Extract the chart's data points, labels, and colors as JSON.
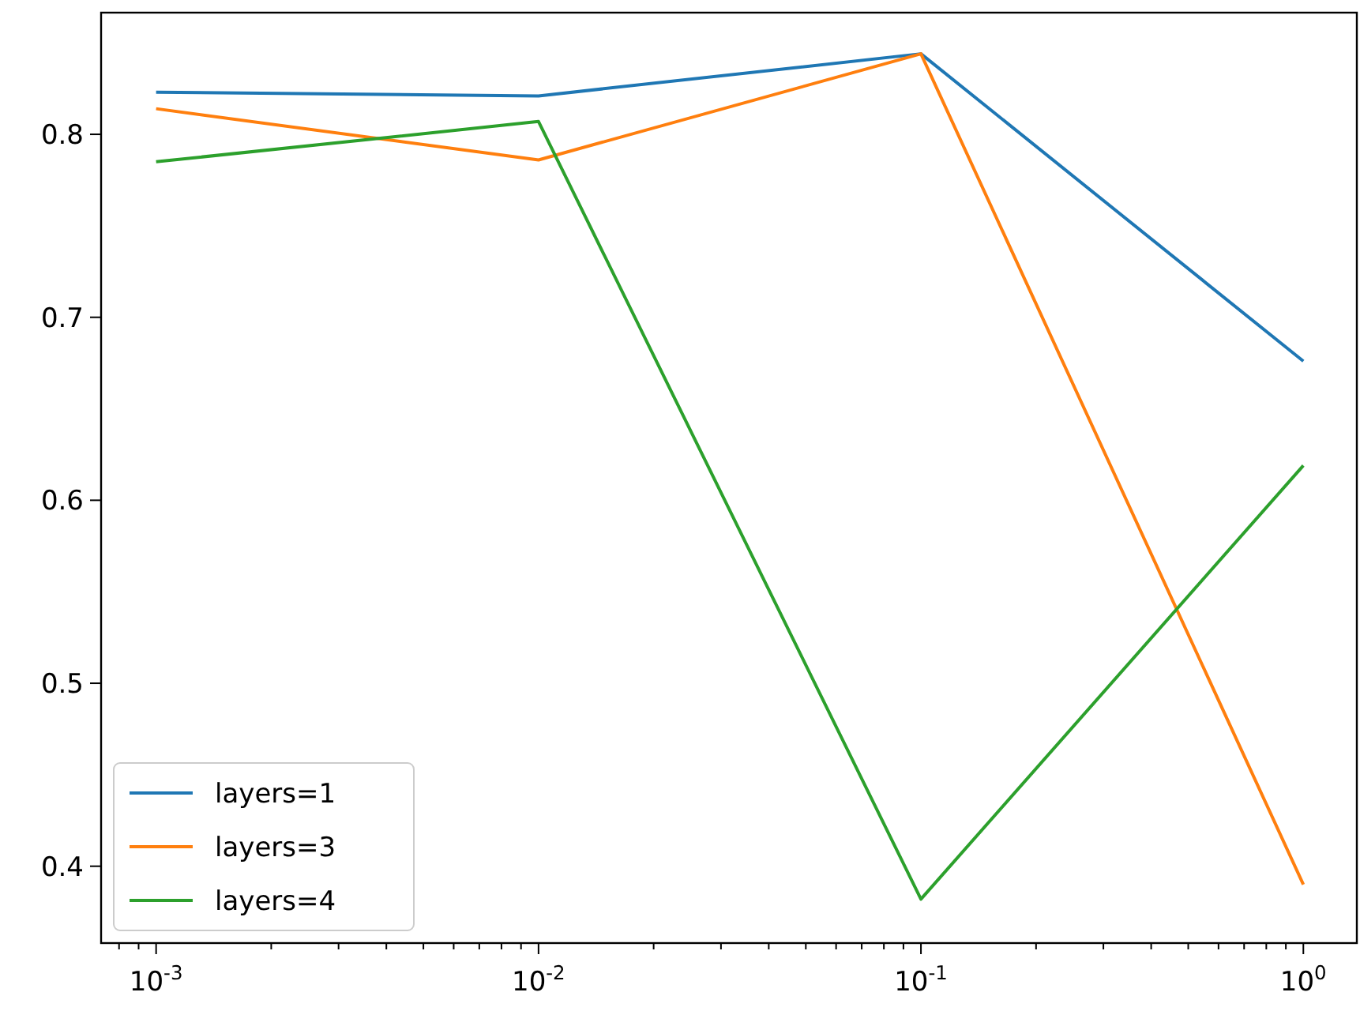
{
  "chart_data": {
    "type": "line",
    "x": [
      0.001,
      0.01,
      0.1,
      1
    ],
    "xlim": [
      0.000718,
      1.38
    ],
    "ylim": [
      0.358,
      0.8665
    ],
    "log": "x",
    "xticks": [
      {
        "value": 0.0008,
        "label": null
      },
      {
        "value": 0.0009,
        "label": null
      },
      {
        "value": 0.001,
        "label": "10$^{-3}$"
      },
      {
        "value": 0.002,
        "label": null
      },
      {
        "value": 0.003,
        "label": null
      },
      {
        "value": 0.004,
        "label": null
      },
      {
        "value": 0.005,
        "label": null
      },
      {
        "value": 0.006,
        "label": null
      },
      {
        "value": 0.007,
        "label": null
      },
      {
        "value": 0.008,
        "label": null
      },
      {
        "value": 0.009,
        "label": null
      },
      {
        "value": 0.01,
        "label": "10$^{-2}$"
      },
      {
        "value": 0.02,
        "label": null
      },
      {
        "value": 0.03,
        "label": null
      },
      {
        "value": 0.04,
        "label": null
      },
      {
        "value": 0.05,
        "label": null
      },
      {
        "value": 0.06,
        "label": null
      },
      {
        "value": 0.07,
        "label": null
      },
      {
        "value": 0.08,
        "label": null
      },
      {
        "value": 0.09,
        "label": null
      },
      {
        "value": 0.1,
        "label": "10$^{-1}$"
      },
      {
        "value": 0.2,
        "label": null
      },
      {
        "value": 0.3,
        "label": null
      },
      {
        "value": 0.4,
        "label": null
      },
      {
        "value": 0.5,
        "label": null
      },
      {
        "value": 0.6,
        "label": null
      },
      {
        "value": 0.7,
        "label": null
      },
      {
        "value": 0.8,
        "label": null
      },
      {
        "value": 0.9,
        "label": null
      },
      {
        "value": 1,
        "label": "10$^{0}$"
      }
    ],
    "yticks": [
      0.4,
      0.5,
      0.6,
      0.7,
      0.8
    ],
    "legend": "bottom left",
    "grid": false,
    "marker": "none",
    "line_style": "solid",
    "series": [
      {
        "name": "layers=1",
        "color": "#1f77b4",
        "values": [
          0.823,
          0.821,
          0.844,
          0.676
        ]
      },
      {
        "name": "layers=3",
        "color": "#ff7f0e",
        "values": [
          0.814,
          0.786,
          0.844,
          0.39
        ]
      },
      {
        "name": "layers=4",
        "color": "#2ca02c",
        "values": [
          0.785,
          0.807,
          0.382,
          0.619
        ]
      }
    ]
  }
}
